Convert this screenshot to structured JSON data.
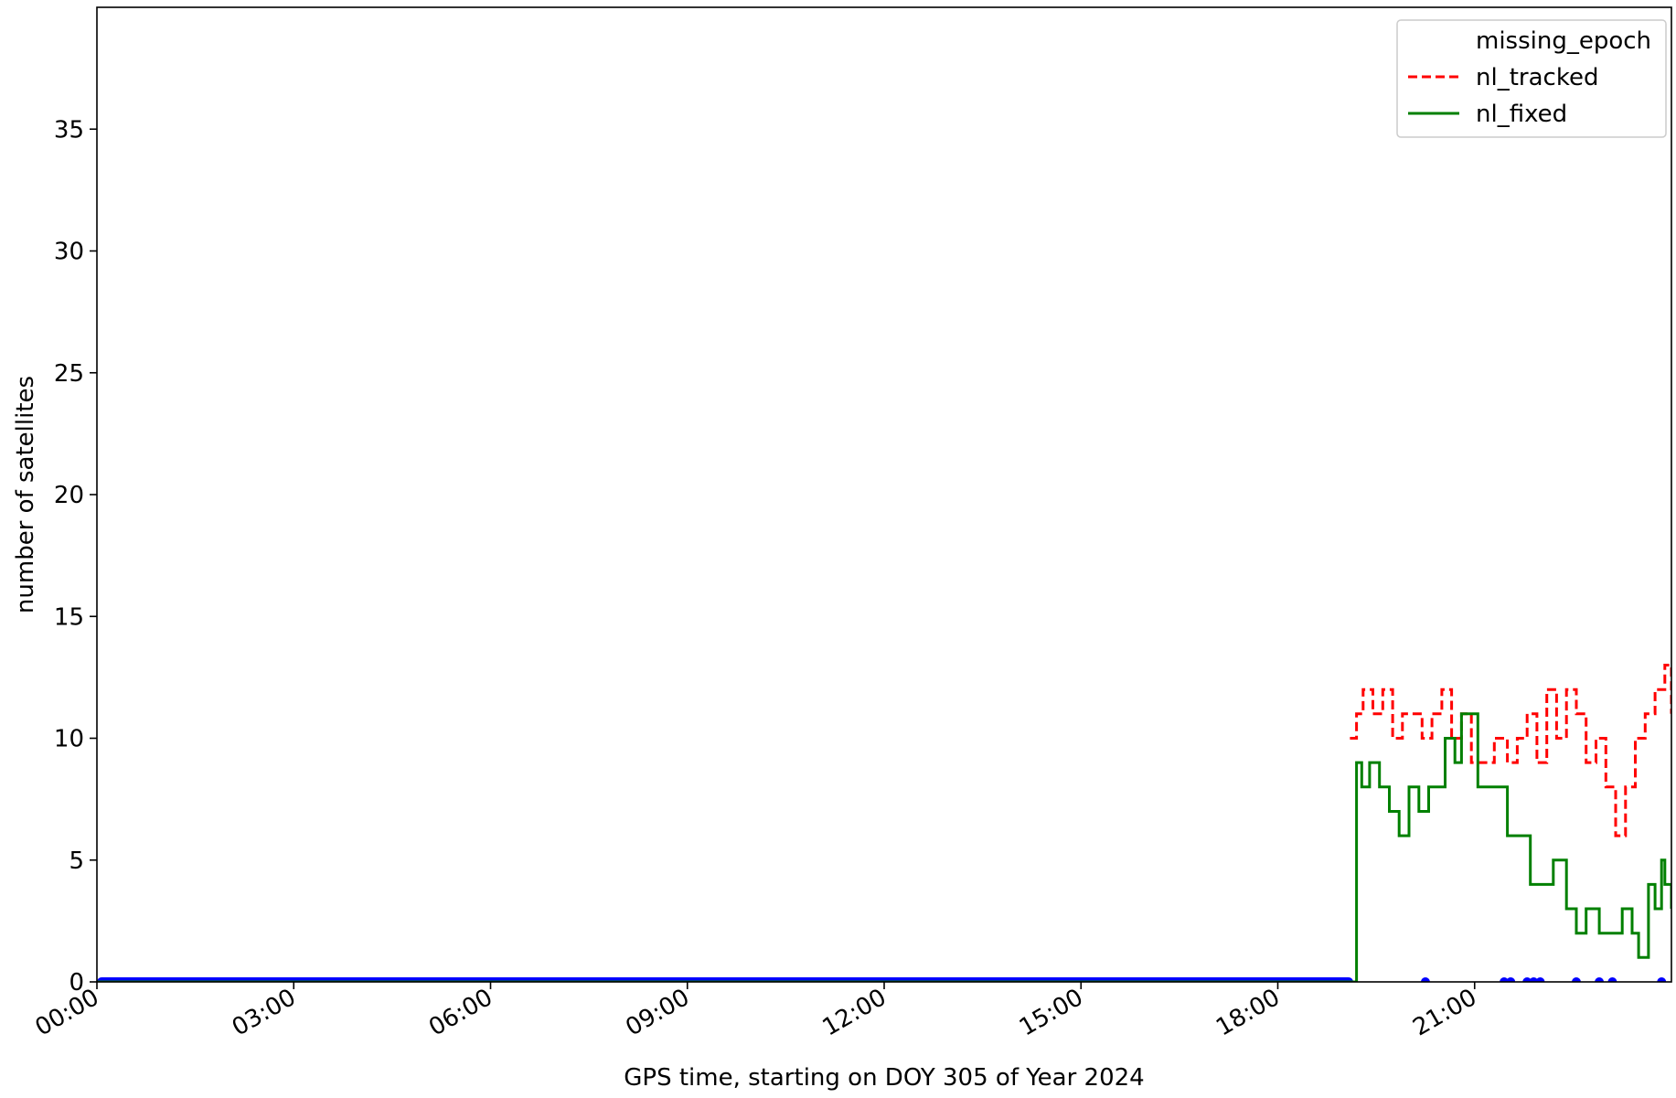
{
  "chart_data": {
    "type": "line",
    "title": "",
    "xlabel": "GPS time, starting on DOY 305 of Year 2024",
    "ylabel": "number of satellites",
    "xlim": [
      0,
      24
    ],
    "ylim": [
      0,
      40
    ],
    "x_ticks": [
      {
        "value": 0,
        "label": "00:00"
      },
      {
        "value": 3,
        "label": "03:00"
      },
      {
        "value": 6,
        "label": "06:00"
      },
      {
        "value": 9,
        "label": "09:00"
      },
      {
        "value": 12,
        "label": "12:00"
      },
      {
        "value": 15,
        "label": "15:00"
      },
      {
        "value": 18,
        "label": "18:00"
      },
      {
        "value": 21,
        "label": "21:00"
      }
    ],
    "y_ticks": [
      0,
      5,
      10,
      15,
      20,
      25,
      30,
      35
    ],
    "grid": false,
    "legend_position": "top-right",
    "series": [
      {
        "name": "missing_epoch",
        "style": "points",
        "color": "#0000ff",
        "x": [
          20.25,
          21.45,
          21.55,
          21.8,
          21.9,
          22.0,
          22.55,
          22.9,
          23.1,
          23.85
        ],
        "y": [
          0,
          0,
          0,
          0,
          0,
          0,
          0,
          0,
          0,
          0
        ],
        "dense_range": [
          0,
          19.15
        ]
      },
      {
        "name": "nl_tracked",
        "style": "dashed",
        "color": "#ff0000",
        "x": [
          19.1,
          19.2,
          19.3,
          19.45,
          19.6,
          19.75,
          19.9,
          20.05,
          20.2,
          20.35,
          20.5,
          20.65,
          20.8,
          20.95,
          21.1,
          21.3,
          21.5,
          21.65,
          21.8,
          21.95,
          22.1,
          22.25,
          22.4,
          22.55,
          22.7,
          22.85,
          23.0,
          23.15,
          23.3,
          23.45,
          23.6,
          23.75,
          23.9,
          24.0
        ],
        "y": [
          10,
          11,
          12,
          11,
          12,
          10,
          11,
          11,
          10,
          11,
          12,
          10,
          11,
          9,
          9,
          10,
          9,
          10,
          11,
          9,
          12,
          10,
          12,
          11,
          9,
          10,
          8,
          6,
          8,
          10,
          11,
          12,
          13,
          11
        ]
      },
      {
        "name": "nl_fixed",
        "style": "solid",
        "color": "#008000",
        "x": [
          0,
          19.15,
          19.2,
          19.28,
          19.4,
          19.55,
          19.7,
          19.85,
          20.0,
          20.15,
          20.3,
          20.55,
          20.7,
          20.8,
          21.05,
          21.3,
          21.5,
          21.85,
          22.2,
          22.4,
          22.55,
          22.7,
          22.9,
          23.25,
          23.4,
          23.5,
          23.65,
          23.75,
          23.85,
          23.9,
          24.0
        ],
        "y": [
          0,
          0,
          9,
          8,
          9,
          8,
          7,
          6,
          8,
          7,
          8,
          10,
          9,
          11,
          8,
          8,
          6,
          4,
          5,
          3,
          2,
          3,
          2,
          3,
          2,
          1,
          4,
          3,
          5,
          4,
          3
        ]
      }
    ]
  }
}
